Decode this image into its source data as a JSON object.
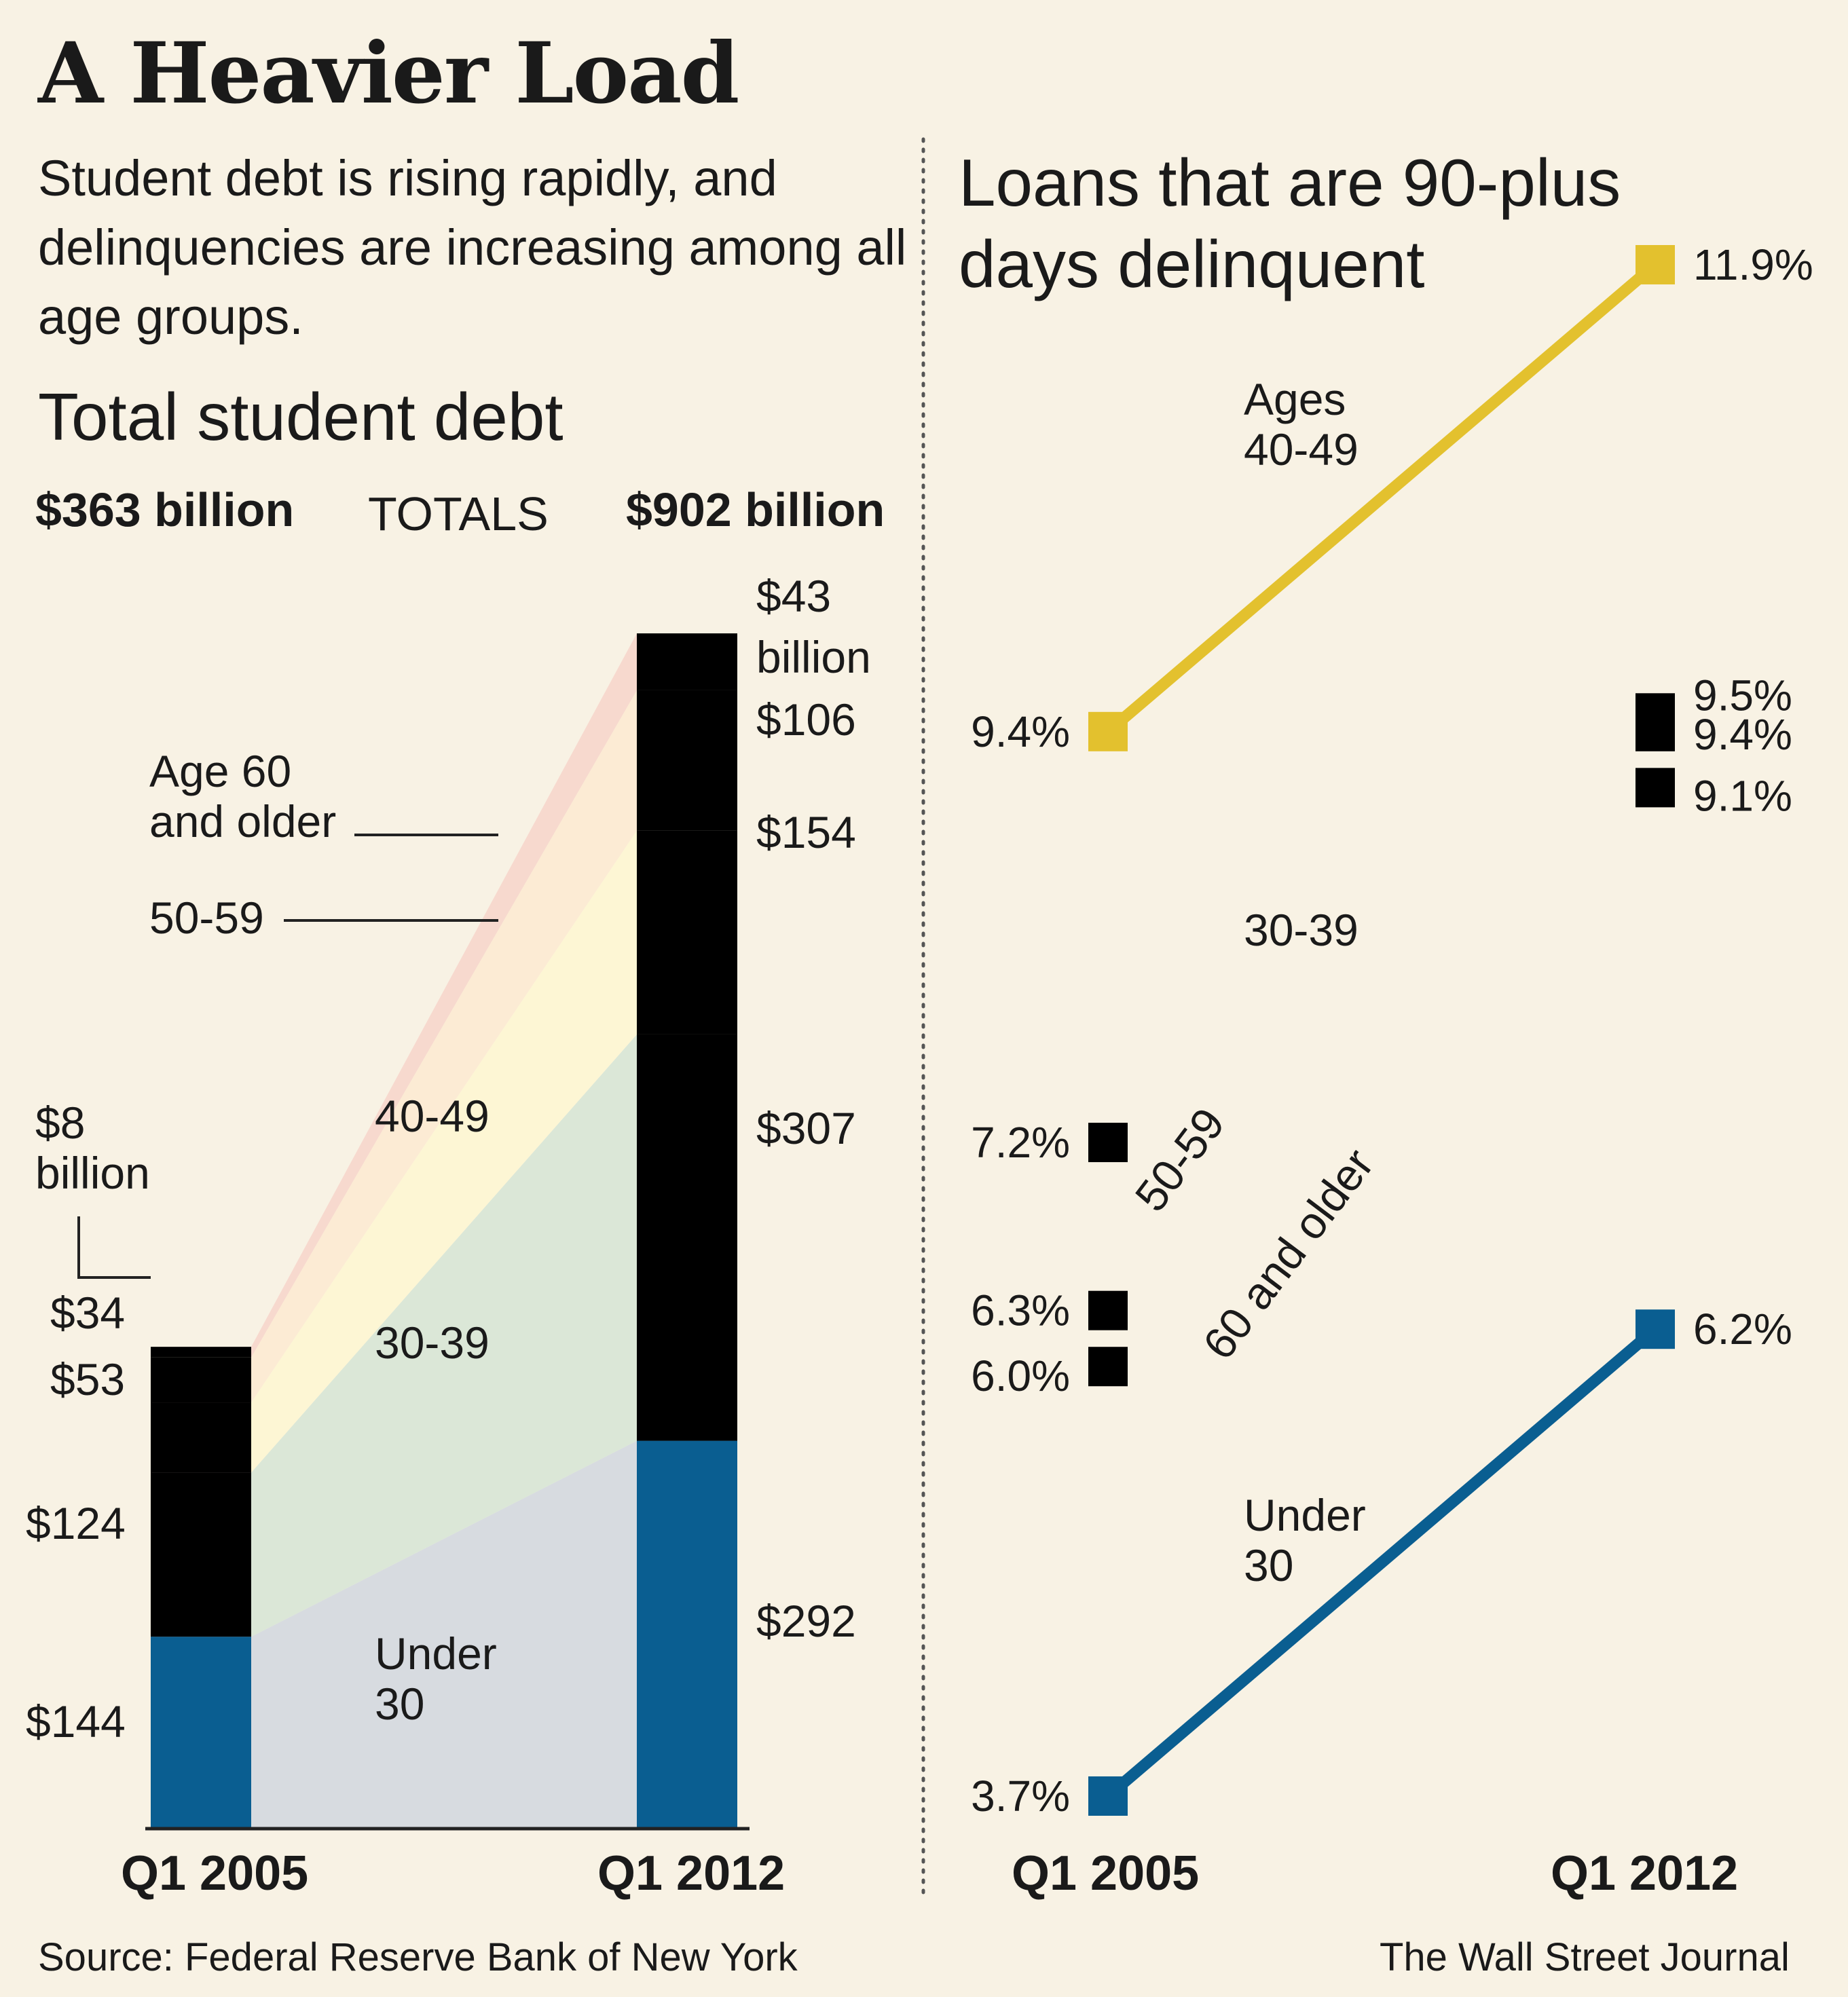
{
  "title": "A Heavier Load",
  "subtitle": "Student debt is rising rapidly, and delinquencies are increasing among all age groups.",
  "source": "Source: Federal Reserve Bank of New York",
  "credit": "The Wall Street Journal",
  "colors": {
    "background": "#f8f2e4",
    "under30": "#0a5e91",
    "age30_39": "#0a7d52",
    "age40_49": "#ffe03c",
    "age50_59": "#f9822c",
    "age60plus": "#cb2a2a",
    "delinquency_40_49_line": "#e3c12e",
    "divider": "#555555"
  },
  "left": {
    "heading": "Total student debt",
    "totals_label": "TOTALS",
    "total_2005": "$363 billion",
    "total_2012": "$902 billion",
    "band_labels": {
      "age60": "Age 60\nand older",
      "age50": "50-59",
      "age40": "40-49",
      "age30": "30-39",
      "under30": "Under\n30"
    },
    "labels_2005": {
      "age60": "$8\nbillion",
      "age50": "$34",
      "age40": "$53",
      "age30": "$124",
      "under30": "$144"
    },
    "labels_2012": {
      "age60": "$43\nbillion",
      "age50": "$106",
      "age40": "$154",
      "age30": "$307",
      "under30": "$292"
    }
  },
  "right": {
    "heading": "Loans that are 90-plus\ndays delinquent",
    "series_labels": {
      "age40": "Ages\n40-49",
      "age30": "30-39",
      "age50": "50-59",
      "age60": "60 and older",
      "under30": "Under\n30"
    }
  },
  "chart_data": [
    {
      "type": "bar",
      "title": "Total student debt",
      "stacked": true,
      "unit": "billion dollars",
      "categories": [
        "Q1 2005",
        "Q1 2012"
      ],
      "totals": [
        363,
        902
      ],
      "series": [
        {
          "name": "Under 30",
          "key": "under30",
          "values": [
            144,
            292
          ]
        },
        {
          "name": "30-39",
          "key": "age30",
          "values": [
            124,
            307
          ]
        },
        {
          "name": "40-49",
          "key": "age40",
          "values": [
            53,
            154
          ]
        },
        {
          "name": "50-59",
          "key": "age50",
          "values": [
            34,
            106
          ]
        },
        {
          "name": "Age 60 and older",
          "key": "age60",
          "values": [
            8,
            43
          ]
        }
      ]
    },
    {
      "type": "line",
      "title": "Loans that are 90-plus days delinquent",
      "x": [
        "Q1 2005",
        "Q1 2012"
      ],
      "ylim": [
        3.7,
        11.9
      ],
      "series": [
        {
          "name": "Ages 40-49",
          "key": "age40",
          "values": [
            9.4,
            11.9
          ],
          "labels": [
            "9.4%",
            "11.9%"
          ]
        },
        {
          "name": "30-39",
          "key": "age30",
          "values": [
            7.2,
            9.1
          ],
          "labels": [
            "7.2%",
            "9.1%"
          ]
        },
        {
          "name": "50-59",
          "key": "age50",
          "values": [
            6.3,
            9.4
          ],
          "labels": [
            "6.3%",
            "9.4%"
          ]
        },
        {
          "name": "60 and older",
          "key": "age60",
          "values": [
            6.0,
            9.5
          ],
          "labels": [
            "6.0%",
            "9.5%"
          ]
        },
        {
          "name": "Under 30",
          "key": "under30",
          "values": [
            3.7,
            6.2
          ],
          "labels": [
            "3.7%",
            "6.2%"
          ]
        }
      ]
    }
  ]
}
